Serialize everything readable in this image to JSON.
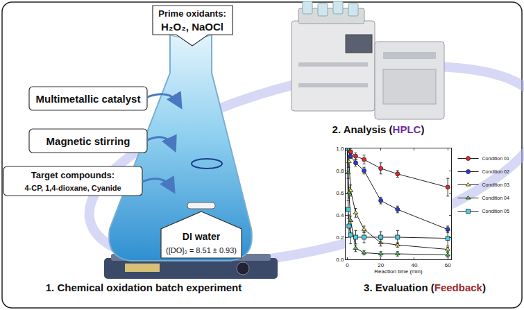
{
  "labels": {
    "oxidants_title": "Prime oxidants:",
    "oxidants": "H₂O₂, NaOCl",
    "catalyst": "Multimetallic catalyst",
    "stirring": "Magnetic stirring",
    "targets_title": "Target compounds:",
    "targets": "4-CP, 1,4-dioxane, Cyanide",
    "water": "DI water",
    "dissolved_oxygen": "([DO]₀ = 8.51 ± 0.93)"
  },
  "steps": [
    {
      "text": "1. Chemical oxidation batch experiment"
    },
    {
      "text": "2. Analysis (",
      "highlight": "HPLC",
      "after": ")",
      "highlight_color": "#7030a0"
    },
    {
      "text": "3. Evaluation (",
      "highlight": "Feedback",
      "after": ")",
      "highlight_color": "#a0282a"
    }
  ],
  "chart_data": {
    "type": "line",
    "xlabel": "Reaction time (min)",
    "xlim": [
      -1,
      62
    ],
    "xticks": [
      0,
      20,
      40,
      60
    ],
    "ylim": [
      0,
      1.0
    ],
    "yticks": [
      {
        "value": 0,
        "label": "0.0"
      },
      0.2,
      0.4,
      0.6,
      0.8,
      {
        "value": 1,
        "label": "1.0"
      }
    ],
    "grid": false,
    "legend": "right",
    "series": [
      {
        "name": "Condition 01",
        "color": "#e8262a",
        "marker": "circle",
        "x": [
          0,
          2,
          5,
          10,
          20,
          30,
          60
        ],
        "values": [
          1.0,
          0.97,
          0.93,
          0.9,
          0.82,
          0.77,
          0.65
        ],
        "errors": [
          0,
          0.03,
          0.03,
          0.04,
          0.05,
          0.03,
          0.08
        ]
      },
      {
        "name": "Condition 02",
        "color": "#2a3ad8",
        "marker": "circle",
        "x": [
          0,
          2,
          5,
          10,
          20,
          30,
          60
        ],
        "values": [
          1.0,
          0.93,
          0.87,
          0.8,
          0.53,
          0.45,
          0.27
        ],
        "errors": [
          0,
          0.02,
          0.03,
          0.03,
          0.03,
          0.03,
          0.03
        ]
      },
      {
        "name": "Condition 03",
        "color": "#f2f24a",
        "marker": "triangle-up",
        "x": [
          0,
          1,
          2,
          5,
          10,
          20,
          30,
          60
        ],
        "values": [
          1.0,
          0.88,
          0.62,
          0.42,
          0.27,
          0.15,
          0.13,
          0.09
        ],
        "errors": [
          0,
          0.05,
          0.05,
          0.04,
          0.03,
          0.03,
          0.02,
          0.02
        ]
      },
      {
        "name": "Condition 04",
        "color": "#44d044",
        "marker": "triangle-up",
        "x": [
          0,
          0.5,
          1,
          2,
          5,
          10,
          20,
          30,
          60
        ],
        "values": [
          1.0,
          0.78,
          0.6,
          0.35,
          0.1,
          0.06,
          0.05,
          0.05,
          0.04
        ],
        "errors": [
          0,
          0.05,
          0.05,
          0.04,
          0.03,
          0.02,
          0.02,
          0.02,
          0.02
        ]
      },
      {
        "name": "Condition 05",
        "color": "#44d4e4",
        "marker": "square",
        "x": [
          0,
          0.5,
          1,
          2,
          5,
          10,
          20,
          30,
          60
        ],
        "values": [
          1.0,
          0.45,
          0.3,
          0.22,
          0.2,
          0.2,
          0.2,
          0.2,
          0.19
        ],
        "errors": [
          0,
          0.08,
          0.1,
          0.08,
          0.06,
          0.05,
          0.05,
          0.06,
          0.07
        ]
      }
    ]
  }
}
